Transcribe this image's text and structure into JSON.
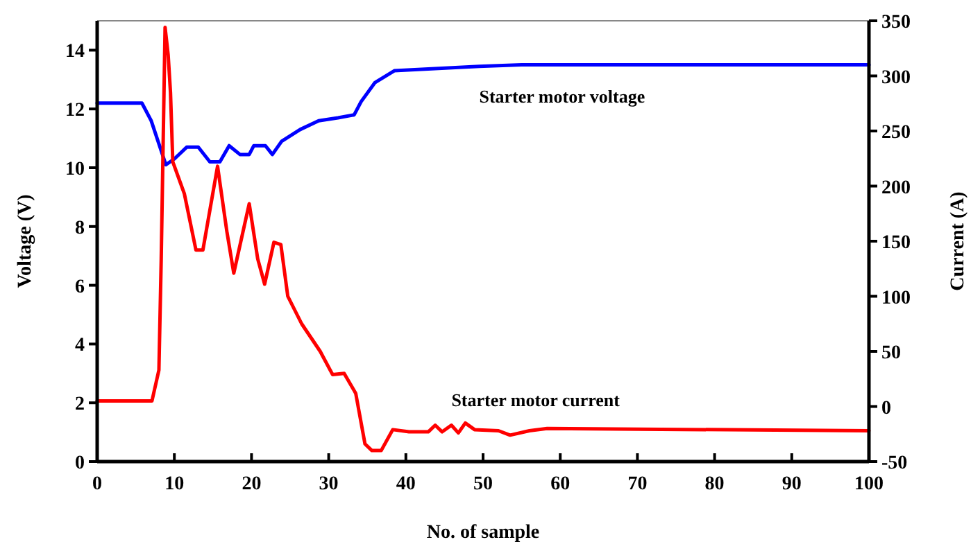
{
  "chart_data": {
    "type": "line",
    "xlabel": "No. of sample",
    "ylabel": "Voltage (V)",
    "y2label": "Current (A)",
    "xlim": [
      0,
      100
    ],
    "xticks": [
      0,
      10,
      20,
      30,
      40,
      50,
      60,
      70,
      80,
      90,
      100
    ],
    "ylim": [
      0,
      15
    ],
    "yticks": [
      0,
      2,
      4,
      6,
      8,
      10,
      12,
      14
    ],
    "y2lim": [
      -50,
      350
    ],
    "y2ticks": [
      -50,
      0,
      50,
      100,
      150,
      200,
      250,
      300,
      350
    ],
    "grid": false,
    "marker": "none",
    "line_style": "solid",
    "series": [
      {
        "name": "Starter motor voltage",
        "color": "#0000ff",
        "x": [
          0,
          5.8,
          7,
          8.9,
          10,
          11.6,
          13.1,
          14.6,
          15.9,
          17.1,
          18.5,
          19.7,
          20.3,
          21.8,
          22.7,
          23.9,
          26.3,
          28.7,
          31.2,
          33.3,
          34.2,
          36,
          38.5,
          49.5,
          55,
          100
        ],
        "values": [
          12.2,
          12.2,
          11.6,
          10.1,
          10.3,
          10.7,
          10.7,
          10.2,
          10.2,
          10.75,
          10.45,
          10.45,
          10.75,
          10.75,
          10.45,
          10.9,
          11.3,
          11.6,
          11.7,
          11.8,
          12.25,
          12.9,
          13.3,
          13.45,
          13.5,
          13.5
        ]
      },
      {
        "name": "Starter motor current",
        "color": "#ff0000",
        "axis": "y2",
        "x": [
          0,
          7.1,
          8,
          8.3,
          8.8,
          9.2,
          9.5,
          9.8,
          11.3,
          12.8,
          13.7,
          15.6,
          16.8,
          17.7,
          19.7,
          20.8,
          21.7,
          22.9,
          23.8,
          24.7,
          26.5,
          28.9,
          30.5,
          32,
          33.5,
          34.7,
          35.6,
          36.8,
          38.3,
          40.4,
          42.9,
          43.8,
          44.7,
          45.9,
          46.8,
          47.7,
          48.9,
          52,
          53.5,
          56,
          58.3,
          100
        ],
        "values": [
          5,
          5,
          33,
          134,
          344,
          319,
          285,
          222,
          193,
          142,
          142,
          218,
          159,
          121,
          184,
          134,
          111,
          149,
          147,
          100,
          75,
          50,
          29,
          30,
          12,
          -34,
          -40,
          -40,
          -21,
          -23,
          -23,
          -17,
          -23,
          -17,
          -24,
          -15,
          -21,
          -22,
          -26,
          -22,
          -20,
          -22
        ]
      }
    ]
  }
}
